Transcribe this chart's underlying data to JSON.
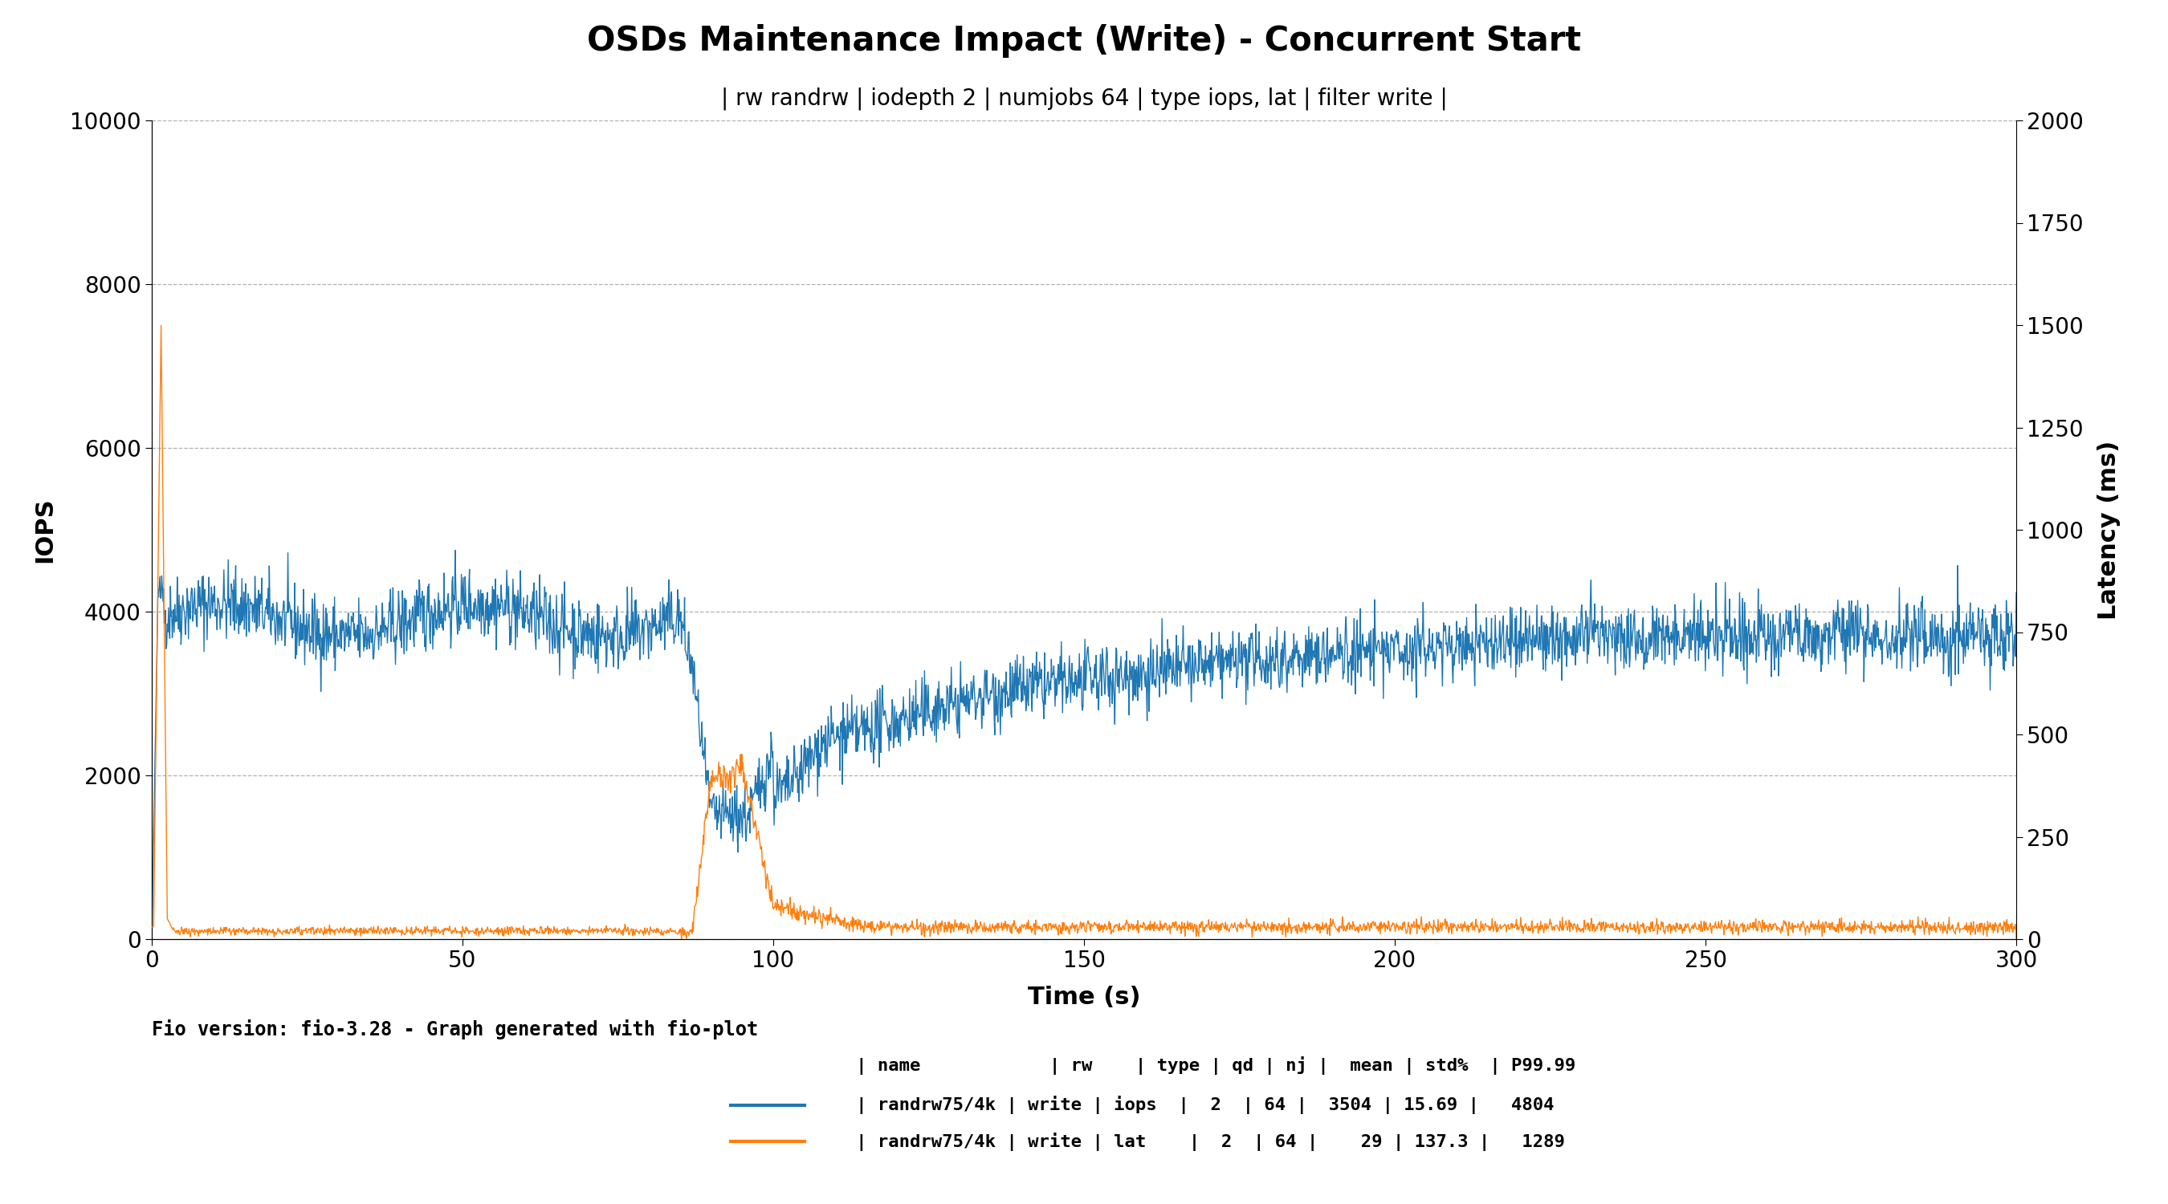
{
  "title": "OSDs Maintenance Impact (Write) - Concurrent Start",
  "subtitle": "| rw randrw | iodepth 2 | numjobs 64 | type iops, lat | filter write |",
  "xlabel": "Time (s)",
  "ylabel_left": "IOPS",
  "ylabel_right": "Latency (ms)",
  "ylim_left": [
    0,
    10000
  ],
  "ylim_right": [
    0,
    2000
  ],
  "xlim": [
    0,
    300
  ],
  "xticks": [
    0,
    50,
    100,
    150,
    200,
    250,
    300
  ],
  "yticks_left": [
    0,
    2000,
    4000,
    6000,
    8000,
    10000
  ],
  "yticks_right": [
    0,
    250,
    500,
    750,
    1000,
    1250,
    1500,
    1750,
    2000
  ],
  "color_iops": "#1f77b4",
  "color_lat": "#ff7f0e",
  "fio_version_text": "Fio version: fio-3.28 - Graph generated with fio-plot",
  "legend_header": "   | name            | rw    | type | qd | nj |  mean | std%  | P99.99",
  "legend_row1": "   | randrw75/4k | write | iops  |  2  | 64 |  3504 | 15.69 |   4804",
  "legend_row2": "   | randrw75/4k | write | lat    |  2  | 64 |    29 | 137.3 |   1289",
  "background_color": "#ffffff",
  "grid_color": "#b0b0b0"
}
